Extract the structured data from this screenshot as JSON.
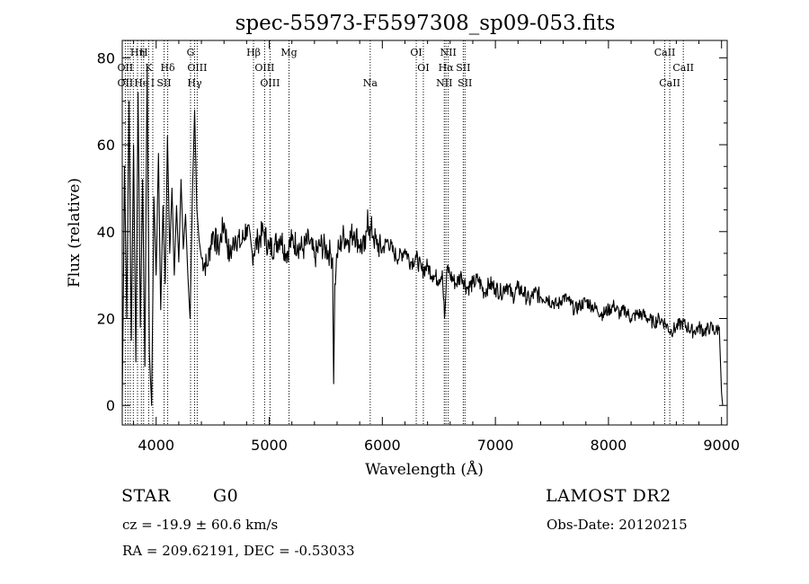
{
  "chart_data": {
    "type": "line",
    "title": "spec-55973-F5597308_sp09-053.fits",
    "xlabel": "Wavelength (Å)",
    "ylabel": "Flux (relative)",
    "xlim": [
      3700,
      9050
    ],
    "ylim": [
      -4.5,
      84
    ],
    "xticks": [
      4000,
      5000,
      6000,
      7000,
      8000,
      9000
    ],
    "yticks": [
      0,
      20,
      40,
      60,
      80
    ],
    "grid": false,
    "series": [
      {
        "name": "flux",
        "x": [
          3700,
          3720,
          3740,
          3760,
          3780,
          3800,
          3820,
          3840,
          3860,
          3880,
          3900,
          3920,
          3940,
          3960,
          3980,
          4000,
          4020,
          4040,
          4060,
          4080,
          4100,
          4120,
          4140,
          4160,
          4180,
          4200,
          4220,
          4240,
          4260,
          4280,
          4300,
          4320,
          4340,
          4360,
          4380,
          4400,
          4450,
          4500,
          4550,
          4600,
          4650,
          4700,
          4750,
          4800,
          4850,
          4900,
          4950,
          5000,
          5050,
          5100,
          5150,
          5200,
          5250,
          5300,
          5350,
          5400,
          5450,
          5500,
          5540,
          5560,
          5570,
          5580,
          5590,
          5600,
          5620,
          5650,
          5700,
          5750,
          5800,
          5850,
          5870,
          5890,
          5900,
          5920,
          5950,
          6000,
          6050,
          6100,
          6150,
          6200,
          6250,
          6300,
          6350,
          6400,
          6450,
          6500,
          6530,
          6550,
          6563,
          6575,
          6600,
          6650,
          6700,
          6750,
          6800,
          6850,
          6900,
          6950,
          7000,
          7050,
          7100,
          7150,
          7200,
          7250,
          7300,
          7350,
          7400,
          7450,
          7500,
          7550,
          7600,
          7650,
          7700,
          7750,
          7800,
          7850,
          7900,
          7950,
          8000,
          8050,
          8100,
          8150,
          8200,
          8250,
          8300,
          8350,
          8400,
          8450,
          8500,
          8550,
          8600,
          8650,
          8700,
          8750,
          8800,
          8850,
          8900,
          8950,
          8980,
          8990,
          9000,
          9010
        ],
        "y": [
          0,
          55,
          20,
          70,
          15,
          60,
          10,
          72,
          18,
          52,
          9,
          78,
          12,
          0,
          48,
          30,
          58,
          22,
          46,
          28,
          62,
          35,
          50,
          30,
          46,
          33,
          52,
          36,
          44,
          30,
          20,
          48,
          68,
          45,
          38,
          34,
          32,
          40,
          36,
          42,
          34,
          39,
          37,
          41,
          35,
          38,
          40,
          36,
          37,
          39,
          35,
          38,
          37,
          36,
          38,
          34,
          37,
          36,
          35,
          34,
          5,
          28,
          31,
          35,
          36,
          39,
          38,
          40,
          37,
          36,
          45,
          38,
          41,
          39,
          37,
          36,
          38,
          35,
          34,
          36,
          33,
          34,
          31,
          32,
          30,
          29,
          31,
          20,
          26,
          32,
          30,
          28,
          30,
          27,
          28,
          29,
          26,
          28,
          27,
          26,
          28,
          25,
          27,
          26,
          24,
          26,
          25,
          25,
          24,
          23,
          25,
          24,
          22,
          23,
          24,
          23,
          22,
          21,
          22,
          23,
          21,
          22,
          20,
          21,
          21,
          20,
          19,
          20,
          19,
          17,
          18,
          19,
          18,
          17,
          18,
          17,
          18,
          17,
          18,
          10,
          3,
          0
        ]
      }
    ],
    "annotations": [
      {
        "text": "Hη",
        "wavelength": 3835,
        "row": 1
      },
      {
        "text": "H",
        "wavelength": 3889,
        "row": 1
      },
      {
        "text": "OII",
        "wavelength": 3727,
        "row": 2
      },
      {
        "text": "K",
        "wavelength": 3934,
        "row": 2
      },
      {
        "text": "Hδ",
        "wavelength": 4102,
        "row": 2
      },
      {
        "text": "OII",
        "wavelength": 3727,
        "row": 3
      },
      {
        "text": "He",
        "wavelength": 3869,
        "row": 3
      },
      {
        "text": "I",
        "wavelength": 3970,
        "row": 3
      },
      {
        "text": "SII",
        "wavelength": 4070,
        "row": 3
      },
      {
        "text": "G",
        "wavelength": 4304,
        "row": 1
      },
      {
        "text": "OIII",
        "wavelength": 4363,
        "row": 2
      },
      {
        "text": "Hγ",
        "wavelength": 4340,
        "row": 3
      },
      {
        "text": "Hβ",
        "wavelength": 4861,
        "row": 1
      },
      {
        "text": "OIII",
        "wavelength": 4959,
        "row": 2
      },
      {
        "text": "OIII",
        "wavelength": 5007,
        "row": 3
      },
      {
        "text": "Mg",
        "wavelength": 5175,
        "row": 1
      },
      {
        "text": "Na",
        "wavelength": 5893,
        "row": 3
      },
      {
        "text": "OI",
        "wavelength": 6300,
        "row": 1
      },
      {
        "text": "OI",
        "wavelength": 6363,
        "row": 2
      },
      {
        "text": "NII",
        "wavelength": 6583,
        "row": 1
      },
      {
        "text": "Hα",
        "wavelength": 6563,
        "row": 2
      },
      {
        "text": "SII",
        "wavelength": 6716,
        "row": 2
      },
      {
        "text": "NII",
        "wavelength": 6548,
        "row": 3
      },
      {
        "text": "SII",
        "wavelength": 6731,
        "row": 3
      },
      {
        "text": "CaII",
        "wavelength": 8498,
        "row": 1
      },
      {
        "text": "CaII",
        "wavelength": 8662,
        "row": 2
      },
      {
        "text": "CaII",
        "wavelength": 8542,
        "row": 3
      }
    ],
    "marker_lines": [
      3727,
      3750,
      3771,
      3798,
      3835,
      3869,
      3889,
      3934,
      3970,
      4070,
      4102,
      4304,
      4340,
      4363,
      4861,
      4959,
      5007,
      5175,
      5893,
      6300,
      6363,
      6548,
      6563,
      6583,
      6716,
      6731,
      8498,
      8542,
      8662
    ]
  },
  "footer": {
    "object_class": "STAR",
    "subclass": "G0",
    "survey": "LAMOST DR2",
    "redshift": "cz = -19.9 ± 60.6 km/s",
    "obs_date": "Obs-Date: 20120215",
    "coords": "RA = 209.62191, DEC =  -0.53033"
  }
}
